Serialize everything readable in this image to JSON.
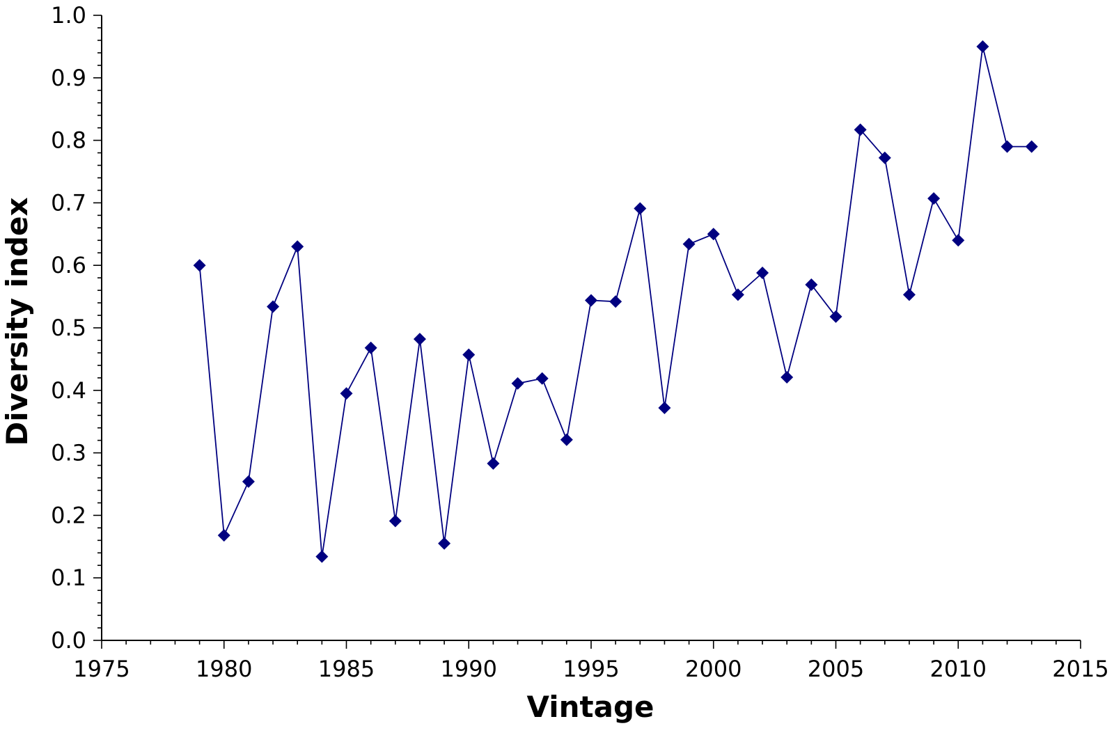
{
  "chart_data": {
    "type": "line",
    "title": "",
    "xlabel": "Vintage",
    "ylabel": "Diversity index",
    "xlim": [
      1975,
      2015
    ],
    "ylim": [
      0.0,
      1.0
    ],
    "x_ticks": [
      "1975",
      "1980",
      "1985",
      "1990",
      "1995",
      "2000",
      "2005",
      "2010",
      "2015"
    ],
    "x_tick_values": [
      1975,
      1980,
      1985,
      1990,
      1995,
      2000,
      2005,
      2010,
      2015
    ],
    "y_ticks": [
      "0.0",
      "0.1",
      "0.2",
      "0.3",
      "0.4",
      "0.5",
      "0.6",
      "0.7",
      "0.8",
      "0.9",
      "1.0"
    ],
    "y_tick_values": [
      0.0,
      0.1,
      0.2,
      0.3,
      0.4,
      0.5,
      0.6,
      0.7,
      0.8,
      0.9,
      1.0
    ],
    "grid": false,
    "legend": "none",
    "marker": "diamond",
    "color": "#000080",
    "series": [
      {
        "x": [
          1979,
          1980,
          1981,
          1982,
          1983,
          1984,
          1985,
          1986,
          1987,
          1988,
          1989,
          1990,
          1991,
          1992,
          1993,
          1994,
          1995,
          1996,
          1997,
          1998,
          1999,
          2000,
          2001,
          2002,
          2003,
          2004,
          2005,
          2006,
          2007,
          2008,
          2009,
          2010,
          2011,
          2012,
          2013
        ],
        "values": [
          0.6,
          0.168,
          0.254,
          0.534,
          0.63,
          0.134,
          0.395,
          0.468,
          0.191,
          0.482,
          0.155,
          0.457,
          0.283,
          0.411,
          0.419,
          0.321,
          0.544,
          0.542,
          0.691,
          0.372,
          0.634,
          0.65,
          0.553,
          0.588,
          0.421,
          0.569,
          0.518,
          0.817,
          0.772,
          0.553,
          0.707,
          0.64,
          0.95,
          0.79,
          0.79
        ]
      }
    ]
  }
}
